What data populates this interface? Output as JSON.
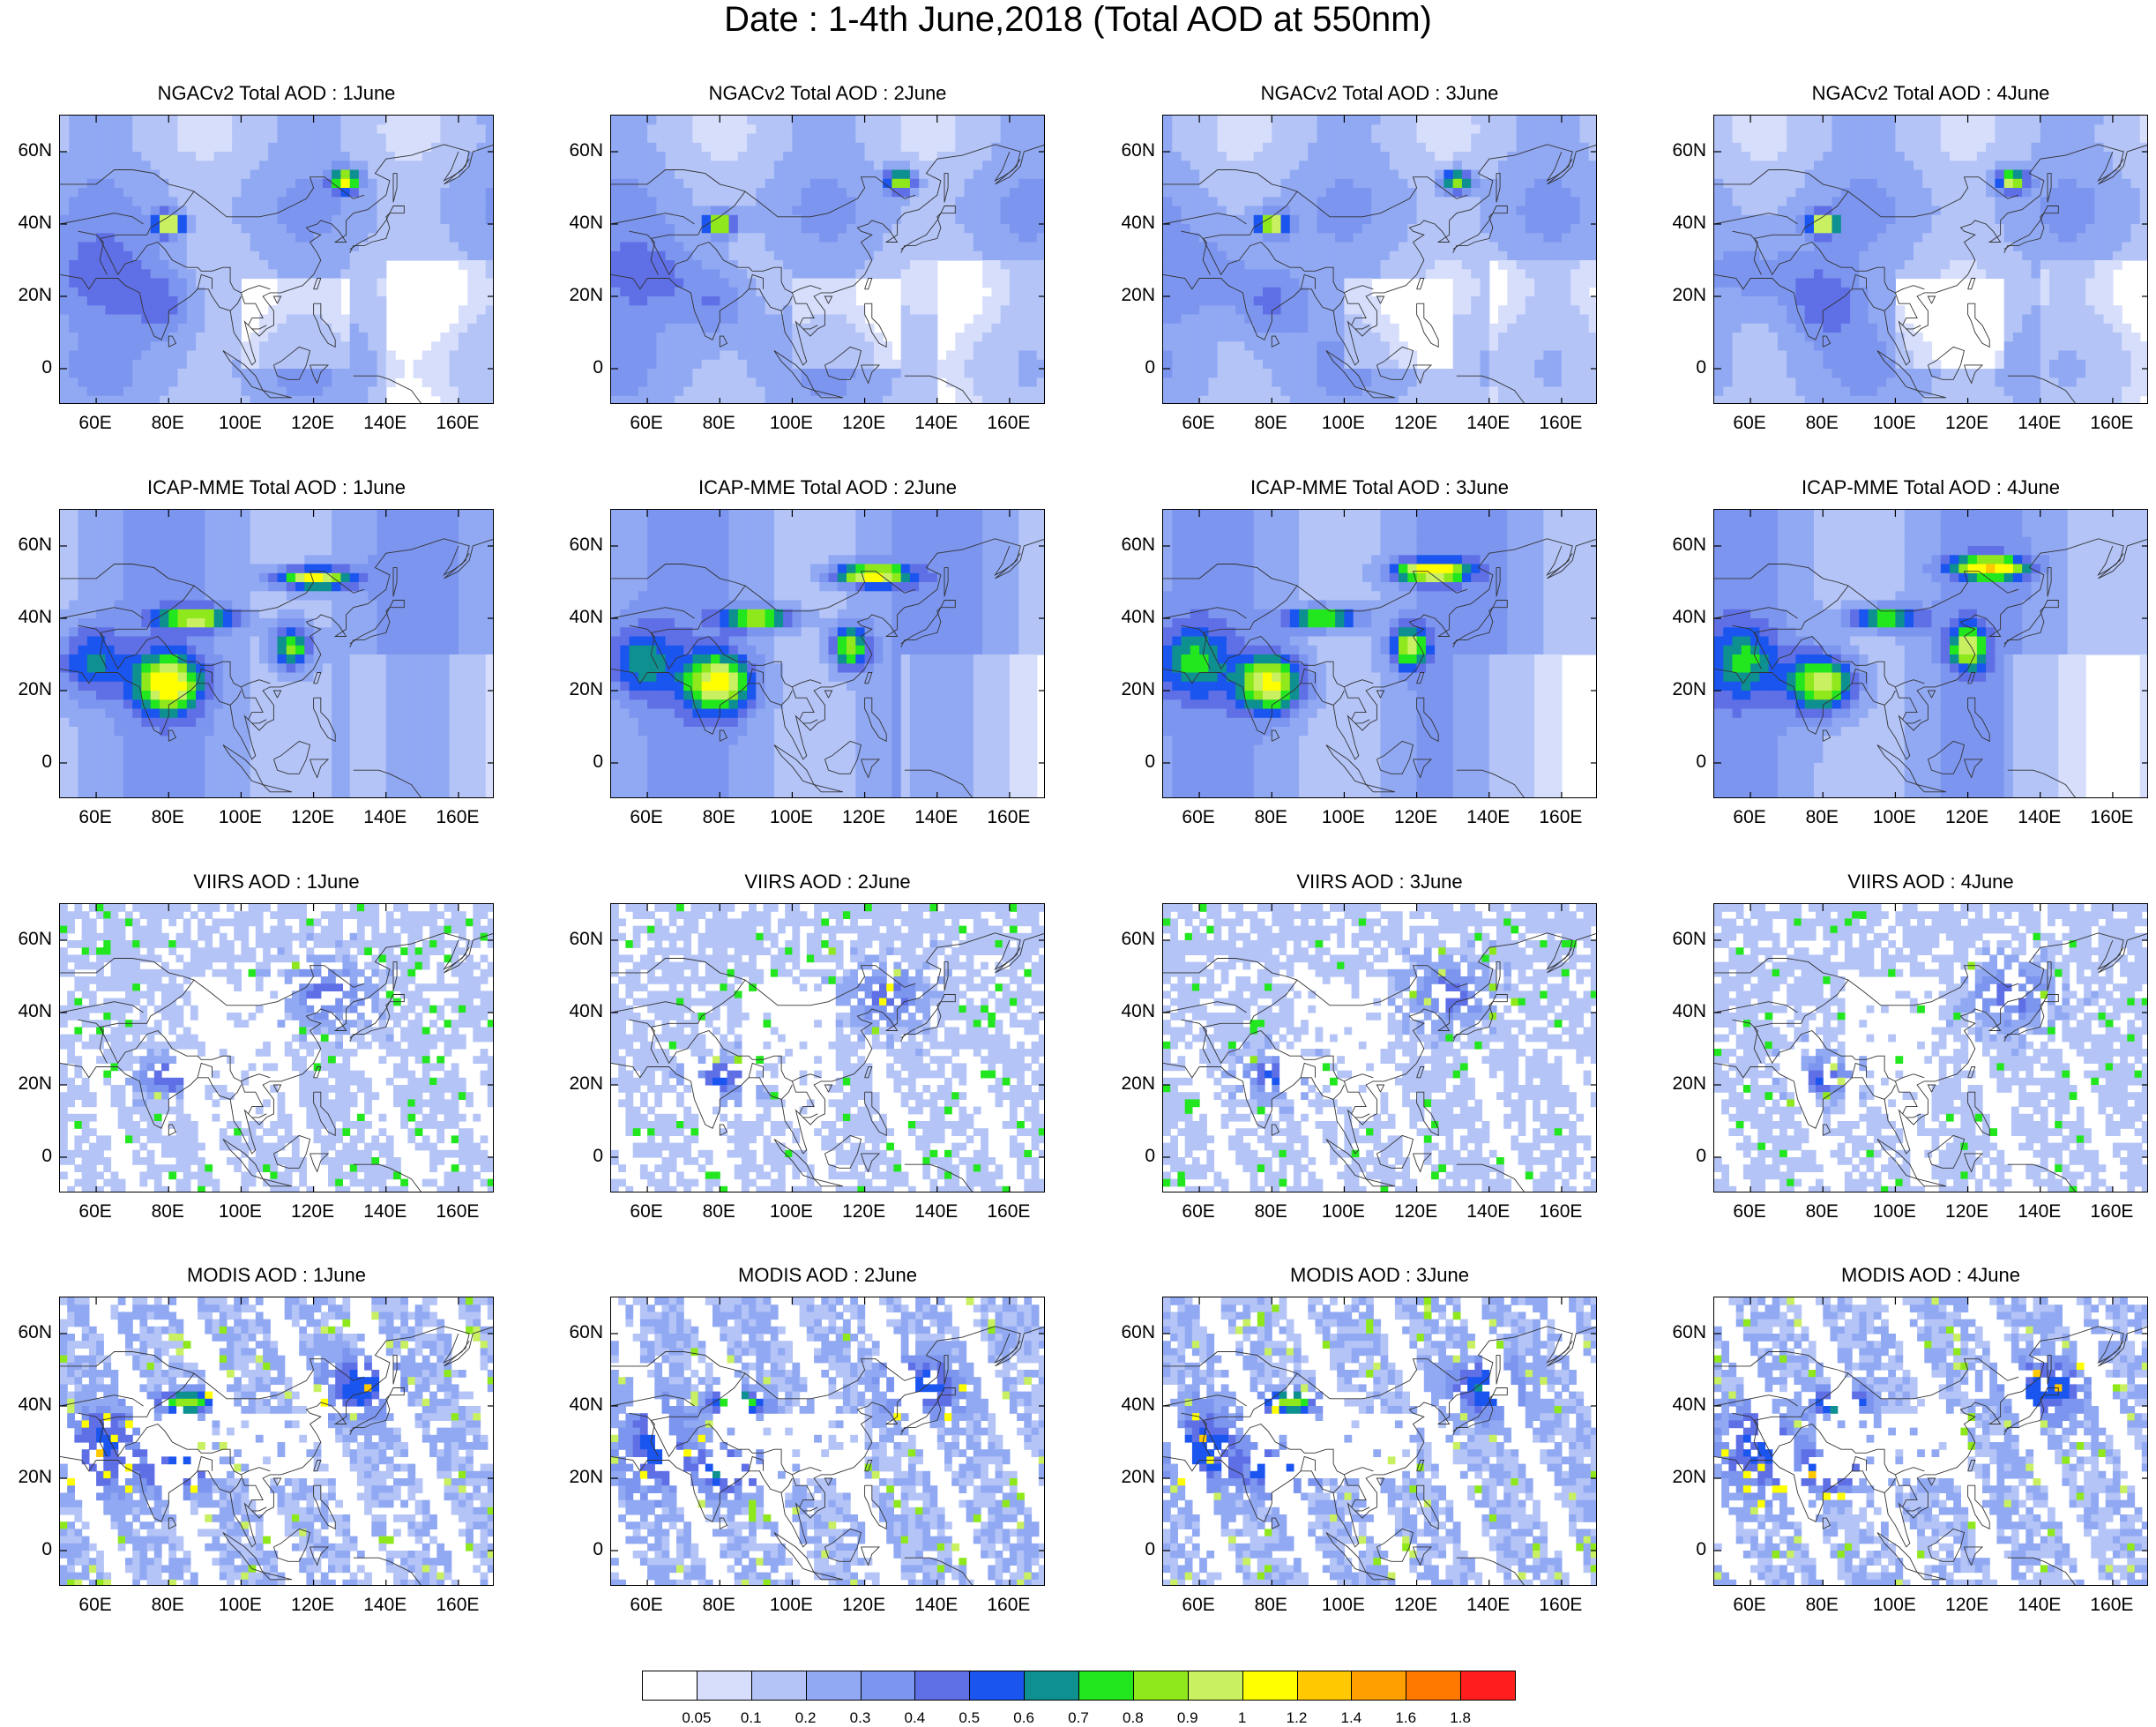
{
  "title": "Date : 1-4th June,2018 (Total AOD at 550nm)",
  "panels": [
    {
      "title": "NGACv2 Total AOD : 1June",
      "model": "ngac",
      "day": 1
    },
    {
      "title": "NGACv2 Total AOD : 2June",
      "model": "ngac",
      "day": 2
    },
    {
      "title": "NGACv2 Total AOD : 3June",
      "model": "ngac",
      "day": 3
    },
    {
      "title": "NGACv2 Total AOD : 4June",
      "model": "ngac",
      "day": 4
    },
    {
      "title": "ICAP-MME Total AOD : 1June",
      "model": "icap",
      "day": 1
    },
    {
      "title": "ICAP-MME Total AOD : 2June",
      "model": "icap",
      "day": 2
    },
    {
      "title": "ICAP-MME Total AOD : 3June",
      "model": "icap",
      "day": 3
    },
    {
      "title": "ICAP-MME Total AOD : 4June",
      "model": "icap",
      "day": 4
    },
    {
      "title": "VIIRS AOD : 1June",
      "model": "viirs",
      "day": 1
    },
    {
      "title": "VIIRS AOD : 2June",
      "model": "viirs",
      "day": 2
    },
    {
      "title": "VIIRS AOD : 3June",
      "model": "viirs",
      "day": 3
    },
    {
      "title": "VIIRS AOD : 4June",
      "model": "viirs",
      "day": 4
    },
    {
      "title": "MODIS AOD : 1June",
      "model": "modis",
      "day": 1
    },
    {
      "title": "MODIS AOD : 2June",
      "model": "modis",
      "day": 2
    },
    {
      "title": "MODIS AOD : 3June",
      "model": "modis",
      "day": 3
    },
    {
      "title": "MODIS AOD : 4June",
      "model": "modis",
      "day": 4
    }
  ],
  "axes": {
    "lon_range": [
      50,
      170
    ],
    "lat_range": [
      -10,
      70
    ],
    "lon_ticks": [
      "60E",
      "80E",
      "100E",
      "120E",
      "140E",
      "160E"
    ],
    "lat_ticks": [
      "60N",
      "40N",
      "20N",
      "0"
    ]
  },
  "colorbar": {
    "labels": [
      "0.05",
      "0.1",
      "0.2",
      "0.3",
      "0.4",
      "0.5",
      "0.6",
      "0.7",
      "0.8",
      "0.9",
      "1",
      "1.2",
      "1.4",
      "1.6",
      "1.8"
    ],
    "colors": [
      "#ffffff",
      "#d6defb",
      "#b4c4f7",
      "#91a9f3",
      "#7c95ef",
      "#5f6fe6",
      "#1a55f0",
      "#0e9090",
      "#22e61e",
      "#8ee81c",
      "#c8f060",
      "#ffff00",
      "#ffc800",
      "#ffa000",
      "#ff7800",
      "#ff1e1e"
    ]
  }
}
